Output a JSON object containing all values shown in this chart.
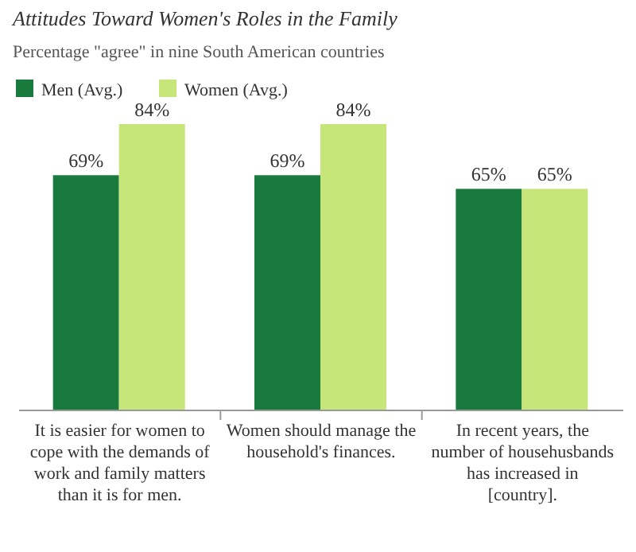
{
  "chart_data": {
    "type": "bar",
    "title": "Attitudes Toward Women's Roles in the Family",
    "subtitle": "Percentage \"agree\" in nine South American countries",
    "categories": [
      "It is easier for women to cope with the demands of work and family matters than it is for men.",
      "Women should manage the household's finances.",
      "In recent years, the number of househusbands has increased in [country]."
    ],
    "series": [
      {
        "name": "Men (Avg.)",
        "color": "#187a3c",
        "values": [
          69,
          69,
          65
        ],
        "value_labels": [
          "69%",
          "69%",
          "65%"
        ]
      },
      {
        "name": "Women (Avg.)",
        "color": "#c6e67a",
        "values": [
          84,
          84,
          65
        ],
        "value_labels": [
          "84%",
          "84%",
          "65%"
        ]
      }
    ],
    "legend": "top left",
    "grid": false
  }
}
